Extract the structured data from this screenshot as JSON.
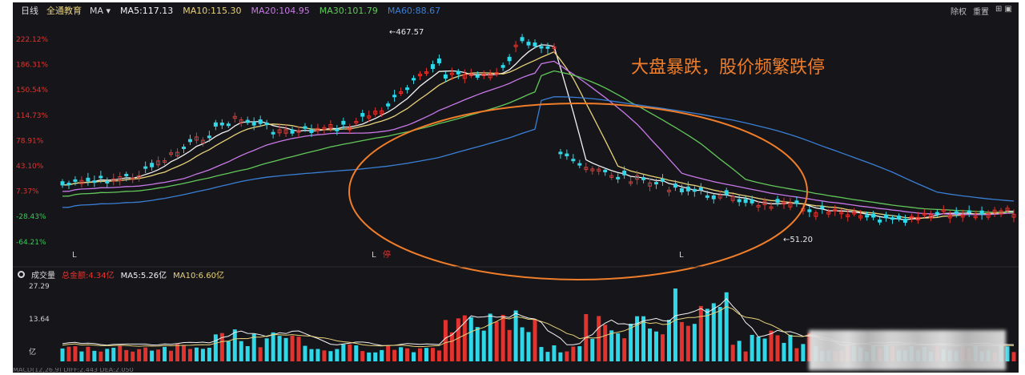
{
  "toolbar": {
    "period": "日线",
    "mode": "全通教育",
    "ma_selector": "MA",
    "ma5": "MA5:117.13",
    "ma10": "MA10:115.30",
    "ma20": "MA20:104.95",
    "ma30": "MA30:101.79",
    "ma60": "MA60:88.67",
    "right_1": "除权",
    "right_2": "重置",
    "right_icons": "⊞ ▣"
  },
  "colors": {
    "background": "#16161a",
    "up": "#e2332e",
    "down": "#2fd8e8",
    "ma5": "#f2f2f2",
    "ma10": "#e8d27a",
    "ma20": "#c878e8",
    "ma30": "#62c85a",
    "ma60": "#3a7fd6",
    "annotation": "#f07d2a",
    "axis_red": "#e2332e",
    "axis_green": "#3cc85a"
  },
  "volume": {
    "title": "成交量",
    "amount": "总金额:4.34亿",
    "ma5": "MA5:5.26亿",
    "ma10": "MA10:6.60亿",
    "axis_labels": [
      "27.29",
      "13.64",
      "亿"
    ],
    "bottom_text": "MACD(12,26,9)  DIFF:2.443  DEA:2.050"
  },
  "annotations": {
    "title": "大盘暴跌，股价频繁跌停",
    "high": "467.57",
    "low": "51.20",
    "marker_L": "L",
    "marker_tag": "停"
  },
  "chart_data": {
    "type": "candlestick",
    "y_axis_labels": [
      "222.12%",
      "186.31%",
      "150.54%",
      "114.73%",
      "78.91%",
      "43.10%",
      "7.37%",
      "-28.43%",
      "-64.21%"
    ],
    "y_axis_kind": "percent change",
    "grid": false,
    "high_label": 467.57,
    "low_label": 51.2,
    "candle_count": 150,
    "segments": [
      {
        "from": 0,
        "to": 0.52,
        "trend": "rise"
      },
      {
        "from": 0.52,
        "to": 1.0,
        "trend": "crash then flat"
      }
    ],
    "moving_averages": [
      "MA5",
      "MA10",
      "MA20",
      "MA30",
      "MA60"
    ],
    "volume_axis": [
      0,
      13.64,
      27.29
    ]
  }
}
